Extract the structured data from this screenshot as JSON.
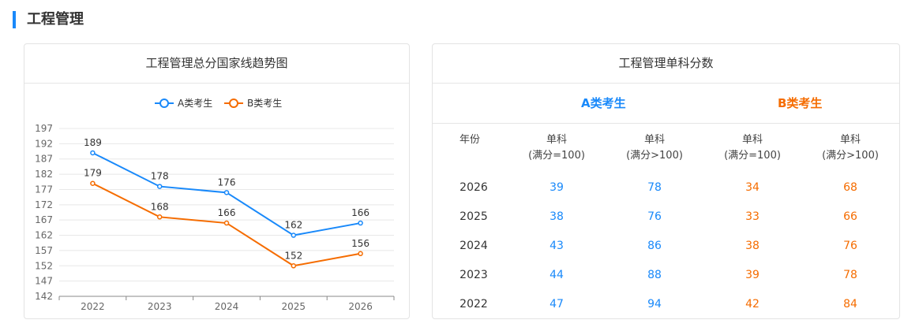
{
  "section": {
    "title": "工程管理"
  },
  "left_card": {
    "title": "工程管理总分国家线趋势图"
  },
  "right_card": {
    "title": "工程管理单科分数",
    "group_a": "A类考生",
    "group_b": "B类考生",
    "headers": {
      "year": "年份",
      "a_le100_1": "单科",
      "a_le100_2": "(满分=100)",
      "a_gt100_1": "单科",
      "a_gt100_2": "(满分>100)",
      "b_le100_1": "单科",
      "b_le100_2": "(满分=100)",
      "b_gt100_1": "单科",
      "b_gt100_2": "(满分>100)"
    },
    "rows": [
      {
        "year": "2026",
        "a1": "39",
        "a2": "78",
        "b1": "34",
        "b2": "68"
      },
      {
        "year": "2025",
        "a1": "38",
        "a2": "76",
        "b1": "33",
        "b2": "66"
      },
      {
        "year": "2024",
        "a1": "43",
        "a2": "86",
        "b1": "38",
        "b2": "76"
      },
      {
        "year": "2023",
        "a1": "44",
        "a2": "88",
        "b1": "39",
        "b2": "78"
      },
      {
        "year": "2022",
        "a1": "47",
        "a2": "94",
        "b1": "42",
        "b2": "84"
      }
    ]
  },
  "chart_data": {
    "type": "line",
    "categories": [
      "2022",
      "2023",
      "2024",
      "2025",
      "2026"
    ],
    "series": [
      {
        "name": "A类考生",
        "color": "#1989fa",
        "values": [
          189,
          178,
          176,
          162,
          166
        ]
      },
      {
        "name": "B类考生",
        "color": "#f56c00",
        "values": [
          179,
          168,
          166,
          152,
          156
        ]
      }
    ],
    "ylim": [
      142,
      197
    ],
    "yticks": [
      197,
      192,
      187,
      182,
      177,
      172,
      167,
      162,
      157,
      152,
      147,
      142
    ],
    "legend": "top-center",
    "grid": true
  }
}
